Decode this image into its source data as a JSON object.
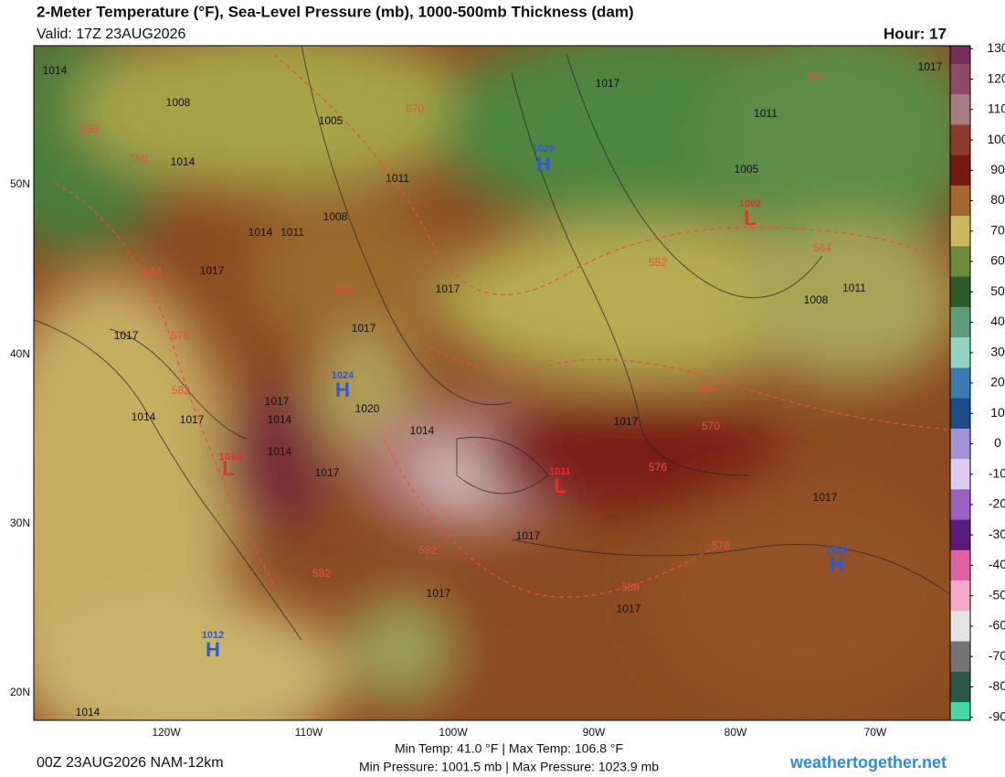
{
  "header": {
    "title": "2-Meter Temperature (°F), Sea-Level Pressure (mb), 1000-500mb Thickness (dam)",
    "valid": "Valid: 17Z 23AUG2026",
    "hour": "Hour: 17"
  },
  "map": {
    "lat_labels": [
      "50N",
      "40N",
      "30N",
      "20N"
    ],
    "lon_labels": [
      "120W",
      "110W",
      "100W",
      "90W",
      "80W",
      "70W"
    ],
    "pressure_centers": [
      {
        "type": "H",
        "value": 1020
      },
      {
        "type": "H",
        "value": 1024
      },
      {
        "type": "H",
        "value": 1012
      },
      {
        "type": "H",
        "value": 1020
      },
      {
        "type": "L",
        "value": 1002
      },
      {
        "type": "L",
        "value": 1016
      },
      {
        "type": "L",
        "value": 1011
      }
    ],
    "isobar_labels": [
      1014,
      1008,
      1005,
      1011,
      1017,
      1011,
      1008,
      1014,
      1011,
      1017,
      1014,
      1017,
      1020,
      1017,
      1014,
      1017,
      1017,
      1014,
      1014,
      1017,
      1017,
      1017,
      1017,
      1017,
      1014,
      1017,
      1008,
      1011,
      1005,
      1017,
      1017,
      1014
    ],
    "thickness_labels": [
      558,
      558,
      570,
      564,
      576,
      582,
      582,
      582,
      564,
      570,
      576,
      576,
      582,
      588,
      558,
      564,
      552
    ]
  },
  "colorbar": {
    "range": [
      -91,
      131
    ],
    "ticks": [
      130,
      120,
      110,
      100,
      90,
      80,
      70,
      60,
      50,
      40,
      30,
      20,
      10,
      0,
      -10,
      -20,
      -30,
      -40,
      -50,
      -60,
      -70,
      -80,
      -90
    ],
    "colors": [
      "#7a2e5c",
      "#8e4a66",
      "#a87c84",
      "#8c3a2a",
      "#741a12",
      "#a2682e",
      "#cdb862",
      "#6c8c3c",
      "#2c5c2c",
      "#5e9c7c",
      "#92d2c4",
      "#3a7cb2",
      "#1c4a8a",
      "#a294d4",
      "#dcccf2",
      "#9a62c2",
      "#5a1c7a",
      "#e062a2",
      "#f2a8c8",
      "#e4e4e4",
      "#747474",
      "#2c5a4a",
      "#44d6a4"
    ]
  },
  "stats": {
    "temp": "Min Temp:  41.0 °F | Max Temp: 106.8 °F",
    "pressure": "Min Pressure: 1001.5 mb | Max Pressure: 1023.9 mb"
  },
  "footer": {
    "run": "00Z 23AUG2026 NAM-12km",
    "site": "weathertogether.net"
  }
}
